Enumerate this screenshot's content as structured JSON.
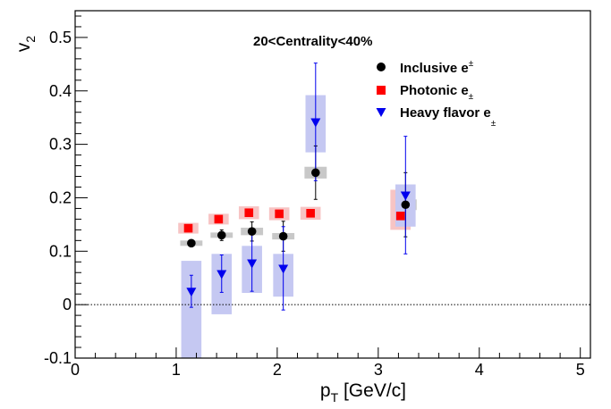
{
  "chart_data": {
    "type": "scatter",
    "annotation": "20<Centrality<40%",
    "xlabel_main": "p",
    "xlabel_sub": "T",
    "xlabel_rest": " [GeV/c]",
    "ylabel_main": "v",
    "ylabel_sub": "2",
    "xlim": [
      0,
      5.1
    ],
    "ylim": [
      -0.1,
      0.55
    ],
    "x_ticks": [
      0,
      1,
      2,
      3,
      4,
      5
    ],
    "y_ticks": [
      -0.1,
      0,
      0.1,
      0.2,
      0.3,
      0.4,
      0.5
    ],
    "x_tick_labels": [
      "0",
      "1",
      "2",
      "3",
      "4",
      "5"
    ],
    "y_tick_labels": [
      "-0.1",
      "0",
      "0.1",
      "0.2",
      "0.3",
      "0.4",
      "0.5"
    ],
    "zero_line": true,
    "legend_position": "top-right",
    "series": [
      {
        "name": "Inclusive e",
        "name_sup": "±",
        "marker": "circle",
        "color": "#000000",
        "sys_color": "#c8c8c8",
        "points": [
          {
            "x": 1.15,
            "y": 0.115,
            "err": 0.005,
            "sys_lo": 0.11,
            "sys_hi": 0.12,
            "sys_w": 0.22
          },
          {
            "x": 1.45,
            "y": 0.13,
            "err": 0.01,
            "sys_lo": 0.125,
            "sys_hi": 0.135,
            "sys_w": 0.22
          },
          {
            "x": 1.75,
            "y": 0.137,
            "err": 0.018,
            "sys_lo": 0.13,
            "sys_hi": 0.144,
            "sys_w": 0.22
          },
          {
            "x": 2.06,
            "y": 0.128,
            "err": 0.028,
            "sys_lo": 0.122,
            "sys_hi": 0.134,
            "sys_w": 0.22
          },
          {
            "x": 2.38,
            "y": 0.247,
            "err": 0.05,
            "sys_lo": 0.236,
            "sys_hi": 0.258,
            "sys_w": 0.22
          },
          {
            "x": 3.27,
            "y": 0.187,
            "err": 0.06,
            "sys_lo": 0.177,
            "sys_hi": 0.197,
            "sys_w": 0.22
          }
        ]
      },
      {
        "name": "Photonic e",
        "name_sub": "±",
        "marker": "square",
        "color": "#ff0000",
        "sys_color": "#f7c4c4",
        "points": [
          {
            "x": 1.12,
            "y": 0.143,
            "err": 0,
            "sys_lo": 0.133,
            "sys_hi": 0.153,
            "sys_w": 0.2
          },
          {
            "x": 1.42,
            "y": 0.16,
            "err": 0,
            "sys_lo": 0.15,
            "sys_hi": 0.17,
            "sys_w": 0.2
          },
          {
            "x": 1.72,
            "y": 0.172,
            "err": 0,
            "sys_lo": 0.16,
            "sys_hi": 0.184,
            "sys_w": 0.2
          },
          {
            "x": 2.02,
            "y": 0.17,
            "err": 0,
            "sys_lo": 0.158,
            "sys_hi": 0.182,
            "sys_w": 0.2
          },
          {
            "x": 2.33,
            "y": 0.171,
            "err": 0,
            "sys_lo": 0.159,
            "sys_hi": 0.183,
            "sys_w": 0.2
          },
          {
            "x": 3.22,
            "y": 0.166,
            "err": 0,
            "sys_lo": 0.14,
            "sys_hi": 0.215,
            "sys_w": 0.2
          }
        ]
      },
      {
        "name": "Heavy flavor e",
        "name_sub": "±",
        "marker": "triangle-down",
        "color": "#0000ee",
        "sys_color": "#c5c8f2",
        "points": [
          {
            "x": 1.15,
            "y": 0.025,
            "err": 0.03,
            "sys_lo": -0.1,
            "sys_hi": 0.082,
            "sys_w": 0.2
          },
          {
            "x": 1.45,
            "y": 0.058,
            "err": 0.035,
            "sys_lo": -0.018,
            "sys_hi": 0.095,
            "sys_w": 0.2
          },
          {
            "x": 1.75,
            "y": 0.078,
            "err": 0.053,
            "sys_lo": 0.022,
            "sys_hi": 0.11,
            "sys_w": 0.2
          },
          {
            "x": 2.06,
            "y": 0.068,
            "err": 0.078,
            "sys_lo": 0.015,
            "sys_hi": 0.095,
            "sys_w": 0.2
          },
          {
            "x": 2.38,
            "y": 0.342,
            "err": 0.11,
            "sys_lo": 0.285,
            "sys_hi": 0.392,
            "sys_w": 0.2
          },
          {
            "x": 3.27,
            "y": 0.205,
            "err": 0.11,
            "sys_lo": 0.146,
            "sys_hi": 0.225,
            "sys_w": 0.2
          }
        ]
      }
    ]
  }
}
